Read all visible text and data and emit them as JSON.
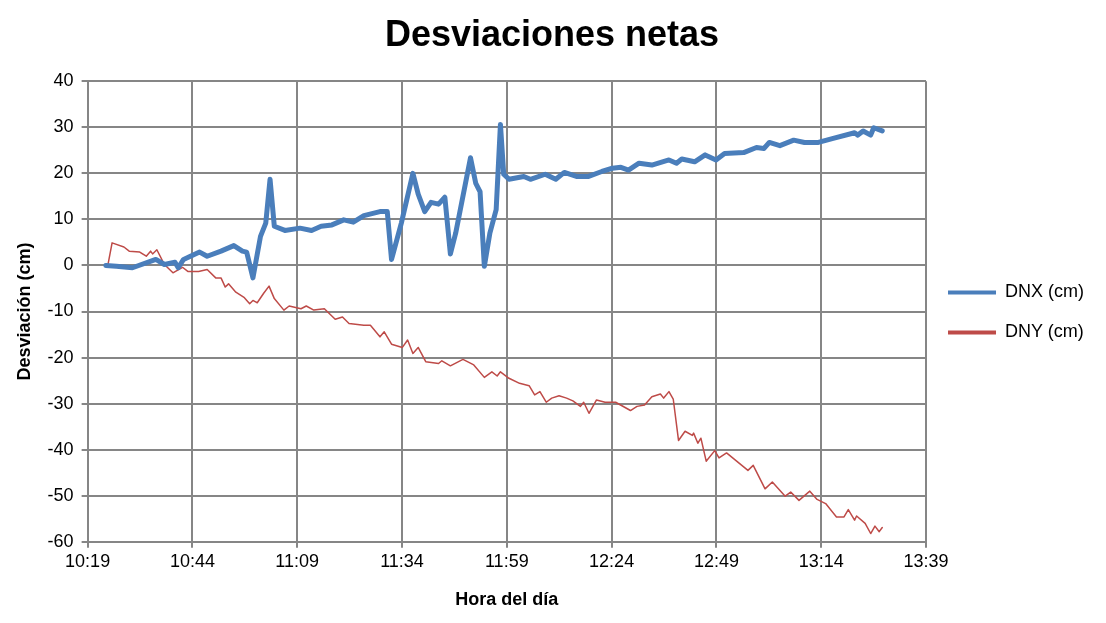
{
  "chart_data": {
    "type": "line",
    "title": "Desviaciones netas",
    "xlabel": "Hora del día",
    "ylabel": "Desviación (cm)",
    "xlim": [
      10.3167,
      13.65
    ],
    "xticks": [
      {
        "value": 10.3167,
        "label": "10:19"
      },
      {
        "value": 10.7333,
        "label": "10:44"
      },
      {
        "value": 11.15,
        "label": "11:09"
      },
      {
        "value": 11.5667,
        "label": "11:34"
      },
      {
        "value": 11.9833,
        "label": "11:59"
      },
      {
        "value": 12.4,
        "label": "12:24"
      },
      {
        "value": 12.8167,
        "label": "12:49"
      },
      {
        "value": 13.2333,
        "label": "13:14"
      },
      {
        "value": 13.65,
        "label": "13:39"
      }
    ],
    "ylim": [
      -60,
      40
    ],
    "yticks": [
      -60,
      -50,
      -40,
      -30,
      -20,
      -10,
      0,
      10,
      20,
      30,
      40
    ],
    "grid": true,
    "legend": "right",
    "marker": "none",
    "line_style": "solid",
    "series": [
      {
        "name": "DNX (cm)",
        "color": "#4a7ebb",
        "x": [
          10.389,
          10.431,
          10.495,
          10.588,
          10.622,
          10.664,
          10.677,
          10.698,
          10.762,
          10.792,
          10.847,
          10.898,
          10.932,
          10.949,
          10.974,
          11.004,
          11.025,
          11.042,
          11.059,
          11.101,
          11.161,
          11.207,
          11.245,
          11.288,
          11.335,
          11.373,
          11.415,
          11.479,
          11.508,
          11.525,
          11.564,
          11.61,
          11.631,
          11.657,
          11.682,
          11.712,
          11.737,
          11.759,
          11.78,
          11.839,
          11.86,
          11.877,
          11.894,
          11.916,
          11.941,
          11.958,
          11.971,
          11.992,
          12.051,
          12.077,
          12.136,
          12.178,
          12.212,
          12.263,
          12.306,
          12.361,
          12.403,
          12.437,
          12.467,
          12.509,
          12.56,
          12.628,
          12.658,
          12.679,
          12.73,
          12.772,
          12.815,
          12.849,
          12.925,
          12.976,
          13.006,
          13.027,
          13.069,
          13.124,
          13.167,
          13.222,
          13.281,
          13.366,
          13.379,
          13.4,
          13.43,
          13.442,
          13.476
        ],
        "values": [
          0,
          -0.2,
          -0.5,
          1.3,
          0.2,
          0.7,
          -0.5,
          1.3,
          2.9,
          2.0,
          3.1,
          4.3,
          3.1,
          2.9,
          -2.7,
          6.3,
          9.2,
          18.7,
          8.5,
          7.6,
          8.1,
          7.6,
          8.5,
          8.8,
          9.9,
          9.4,
          10.8,
          11.7,
          11.7,
          1.3,
          9.2,
          20.0,
          15.5,
          11.7,
          13.7,
          13.3,
          14.8,
          2.5,
          7.0,
          23.4,
          17.8,
          16.0,
          -0.2,
          7.0,
          12.1,
          30.6,
          19.8,
          18.7,
          19.3,
          18.7,
          19.8,
          18.7,
          20.2,
          19.3,
          19.3,
          20.4,
          21.1,
          21.3,
          20.7,
          22.2,
          21.8,
          22.9,
          22.2,
          23.1,
          22.5,
          24.0,
          22.9,
          24.3,
          24.5,
          25.6,
          25.4,
          26.7,
          26.0,
          27.2,
          26.7,
          26.7,
          27.6,
          28.8,
          28.3,
          29.2,
          28.3,
          29.9,
          29.2
        ]
      },
      {
        "name": "DNY (cm)",
        "color": "#be4b48",
        "x": [
          10.397,
          10.414,
          10.461,
          10.482,
          10.524,
          10.55,
          10.567,
          10.575,
          10.592,
          10.622,
          10.656,
          10.694,
          10.715,
          10.758,
          10.792,
          10.826,
          10.847,
          10.864,
          10.877,
          10.906,
          10.94,
          10.961,
          10.974,
          10.991,
          11.016,
          11.038,
          11.059,
          11.097,
          11.118,
          11.165,
          11.186,
          11.216,
          11.258,
          11.301,
          11.33,
          11.356,
          11.415,
          11.441,
          11.479,
          11.496,
          11.525,
          11.568,
          11.589,
          11.61,
          11.631,
          11.661,
          11.712,
          11.725,
          11.759,
          11.809,
          11.852,
          11.894,
          11.924,
          11.945,
          11.958,
          11.992,
          12.034,
          12.072,
          12.094,
          12.115,
          12.14,
          12.162,
          12.191,
          12.221,
          12.246,
          12.276,
          12.289,
          12.31,
          12.34,
          12.374,
          12.416,
          12.475,
          12.501,
          12.531,
          12.56,
          12.594,
          12.607,
          12.628,
          12.645,
          12.666,
          12.692,
          12.721,
          12.726,
          12.743,
          12.755,
          12.776,
          12.81,
          12.827,
          12.857,
          12.891,
          12.942,
          12.963,
          13.01,
          13.039,
          13.09,
          13.112,
          13.145,
          13.188,
          13.217,
          13.251,
          13.294,
          13.324,
          13.341,
          13.366,
          13.374,
          13.408,
          13.43,
          13.447,
          13.464,
          13.476
        ],
        "values": [
          0,
          4.9,
          4.0,
          3.1,
          2.9,
          2.0,
          3.1,
          2.5,
          3.4,
          0.2,
          -1.6,
          -0.4,
          -1.3,
          -1.3,
          -0.9,
          -2.7,
          -2.7,
          -4.7,
          -4.0,
          -5.8,
          -7.0,
          -8.3,
          -7.6,
          -8.1,
          -6.1,
          -4.5,
          -7.2,
          -9.7,
          -8.8,
          -9.4,
          -8.8,
          -9.7,
          -9.4,
          -11.7,
          -11.2,
          -12.6,
          -13.0,
          -13.0,
          -15.5,
          -14.4,
          -17.1,
          -17.8,
          -16.2,
          -19.1,
          -17.8,
          -20.9,
          -21.3,
          -20.7,
          -21.8,
          -20.4,
          -21.6,
          -24.3,
          -23.1,
          -24.0,
          -23.1,
          -24.5,
          -25.6,
          -26.1,
          -28.1,
          -27.4,
          -29.7,
          -28.8,
          -28.3,
          -28.8,
          -29.4,
          -30.6,
          -29.7,
          -32.1,
          -29.2,
          -29.7,
          -29.7,
          -31.5,
          -30.6,
          -30.3,
          -28.5,
          -27.9,
          -28.8,
          -27.4,
          -29.0,
          -38.0,
          -36.0,
          -36.9,
          -36.4,
          -38.6,
          -37.5,
          -42.5,
          -40.2,
          -41.8,
          -40.7,
          -42.2,
          -44.5,
          -43.4,
          -48.5,
          -47.0,
          -50.1,
          -49.2,
          -51.0,
          -49.0,
          -50.8,
          -51.7,
          -54.6,
          -54.6,
          -53.0,
          -55.3,
          -54.4,
          -56.0,
          -58.2,
          -56.6,
          -57.8,
          -56.9
        ]
      }
    ]
  }
}
